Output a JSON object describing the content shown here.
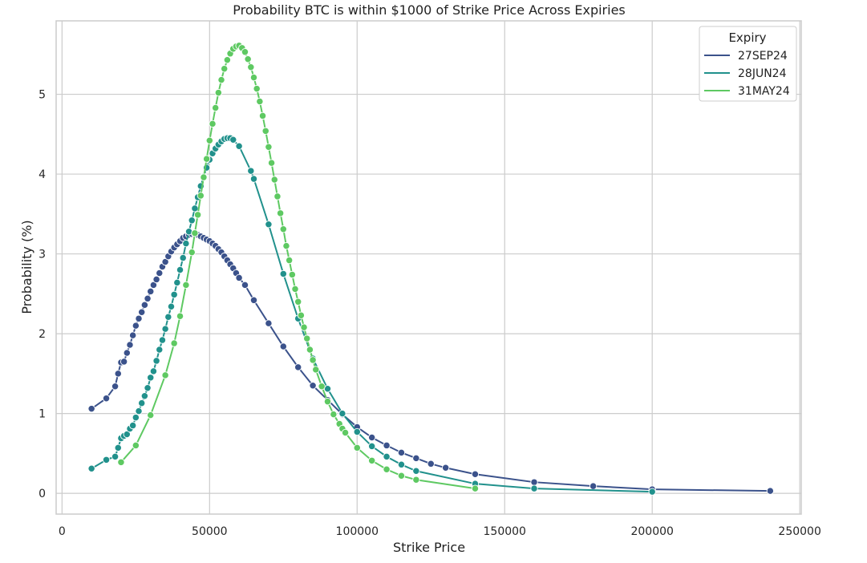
{
  "chart_data": {
    "type": "line",
    "title": "Probability BTC is within $1000 of Strike Price Across Expiries",
    "xlabel": "Strike Price",
    "ylabel": "Probability (%)",
    "xlim": [
      -2000,
      250500
    ],
    "ylim": [
      -0.26,
      5.92
    ],
    "xticks": [
      0,
      50000,
      100000,
      150000,
      200000,
      250000
    ],
    "yticks": [
      0,
      1,
      2,
      3,
      4,
      5
    ],
    "grid": true,
    "legend": {
      "title": "Expiry",
      "placement": "top-right"
    },
    "series": [
      {
        "name": "27SEP24",
        "color": "#3b528b",
        "x": [
          10000,
          15000,
          18000,
          19000,
          20000,
          21000,
          22000,
          23000,
          24000,
          25000,
          26000,
          27000,
          28000,
          29000,
          30000,
          31000,
          32000,
          33000,
          34000,
          35000,
          36000,
          37000,
          38000,
          39000,
          40000,
          41000,
          42000,
          43000,
          44000,
          45000,
          46000,
          47000,
          48000,
          49000,
          50000,
          51000,
          52000,
          53000,
          54000,
          55000,
          56000,
          57000,
          58000,
          59000,
          60000,
          62000,
          65000,
          70000,
          75000,
          80000,
          85000,
          90000,
          95000,
          100000,
          105000,
          110000,
          115000,
          120000,
          125000,
          130000,
          140000,
          160000,
          180000,
          200000,
          240000
        ],
        "y": [
          1.06,
          1.19,
          1.34,
          1.5,
          1.64,
          1.65,
          1.76,
          1.86,
          1.98,
          2.1,
          2.19,
          2.27,
          2.36,
          2.44,
          2.53,
          2.61,
          2.68,
          2.76,
          2.84,
          2.9,
          2.97,
          3.03,
          3.08,
          3.12,
          3.16,
          3.2,
          3.22,
          3.24,
          3.25,
          3.25,
          3.24,
          3.22,
          3.2,
          3.18,
          3.16,
          3.13,
          3.1,
          3.06,
          3.02,
          2.97,
          2.92,
          2.87,
          2.82,
          2.76,
          2.7,
          2.61,
          2.42,
          2.13,
          1.84,
          1.58,
          1.35,
          1.17,
          0.99,
          0.83,
          0.7,
          0.6,
          0.51,
          0.44,
          0.37,
          0.32,
          0.24,
          0.14,
          0.09,
          0.05,
          0.03
        ]
      },
      {
        "name": "28JUN24",
        "color": "#21918c",
        "x": [
          10000,
          15000,
          18000,
          19000,
          20000,
          21000,
          22000,
          23000,
          24000,
          25000,
          26000,
          27000,
          28000,
          29000,
          30000,
          31000,
          32000,
          33000,
          34000,
          35000,
          36000,
          37000,
          38000,
          39000,
          40000,
          41000,
          42000,
          43000,
          44000,
          45000,
          46000,
          47000,
          48000,
          49000,
          50000,
          51000,
          52000,
          53000,
          54000,
          55000,
          56000,
          57000,
          58000,
          60000,
          64000,
          65000,
          70000,
          75000,
          80000,
          85000,
          90000,
          95000,
          100000,
          105000,
          110000,
          115000,
          120000,
          140000,
          160000,
          200000
        ],
        "y": [
          0.31,
          0.42,
          0.46,
          0.57,
          0.69,
          0.72,
          0.74,
          0.81,
          0.85,
          0.95,
          1.03,
          1.13,
          1.22,
          1.32,
          1.45,
          1.53,
          1.66,
          1.8,
          1.92,
          2.06,
          2.21,
          2.34,
          2.49,
          2.64,
          2.8,
          2.95,
          3.13,
          3.28,
          3.42,
          3.57,
          3.71,
          3.85,
          3.97,
          4.08,
          4.18,
          4.26,
          4.32,
          4.37,
          4.41,
          4.44,
          4.45,
          4.45,
          4.43,
          4.35,
          4.04,
          3.94,
          3.37,
          2.75,
          2.19,
          1.69,
          1.31,
          1.0,
          0.77,
          0.59,
          0.46,
          0.36,
          0.28,
          0.12,
          0.06,
          0.02
        ]
      },
      {
        "name": "31MAY24",
        "color": "#5ec962",
        "x": [
          20000,
          25000,
          30000,
          35000,
          38000,
          40000,
          42000,
          44000,
          45000,
          46000,
          47000,
          48000,
          49000,
          50000,
          51000,
          52000,
          53000,
          54000,
          55000,
          56000,
          57000,
          58000,
          59000,
          60000,
          61000,
          62000,
          63000,
          64000,
          65000,
          66000,
          67000,
          68000,
          69000,
          70000,
          71000,
          72000,
          73000,
          74000,
          75000,
          76000,
          77000,
          78000,
          79000,
          80000,
          81000,
          82000,
          83000,
          84000,
          85000,
          86000,
          88000,
          90000,
          92000,
          94000,
          95000,
          96000,
          100000,
          105000,
          110000,
          115000,
          120000,
          140000
        ],
        "y": [
          0.39,
          0.6,
          0.98,
          1.48,
          1.88,
          2.22,
          2.61,
          3.02,
          3.26,
          3.49,
          3.73,
          3.96,
          4.19,
          4.42,
          4.63,
          4.83,
          5.02,
          5.18,
          5.32,
          5.43,
          5.51,
          5.57,
          5.6,
          5.61,
          5.58,
          5.53,
          5.44,
          5.34,
          5.21,
          5.07,
          4.91,
          4.73,
          4.54,
          4.34,
          4.14,
          3.93,
          3.72,
          3.51,
          3.31,
          3.1,
          2.92,
          2.74,
          2.56,
          2.4,
          2.23,
          2.08,
          1.94,
          1.8,
          1.67,
          1.55,
          1.34,
          1.15,
          0.99,
          0.87,
          0.81,
          0.76,
          0.57,
          0.41,
          0.3,
          0.22,
          0.17,
          0.06
        ]
      }
    ]
  }
}
